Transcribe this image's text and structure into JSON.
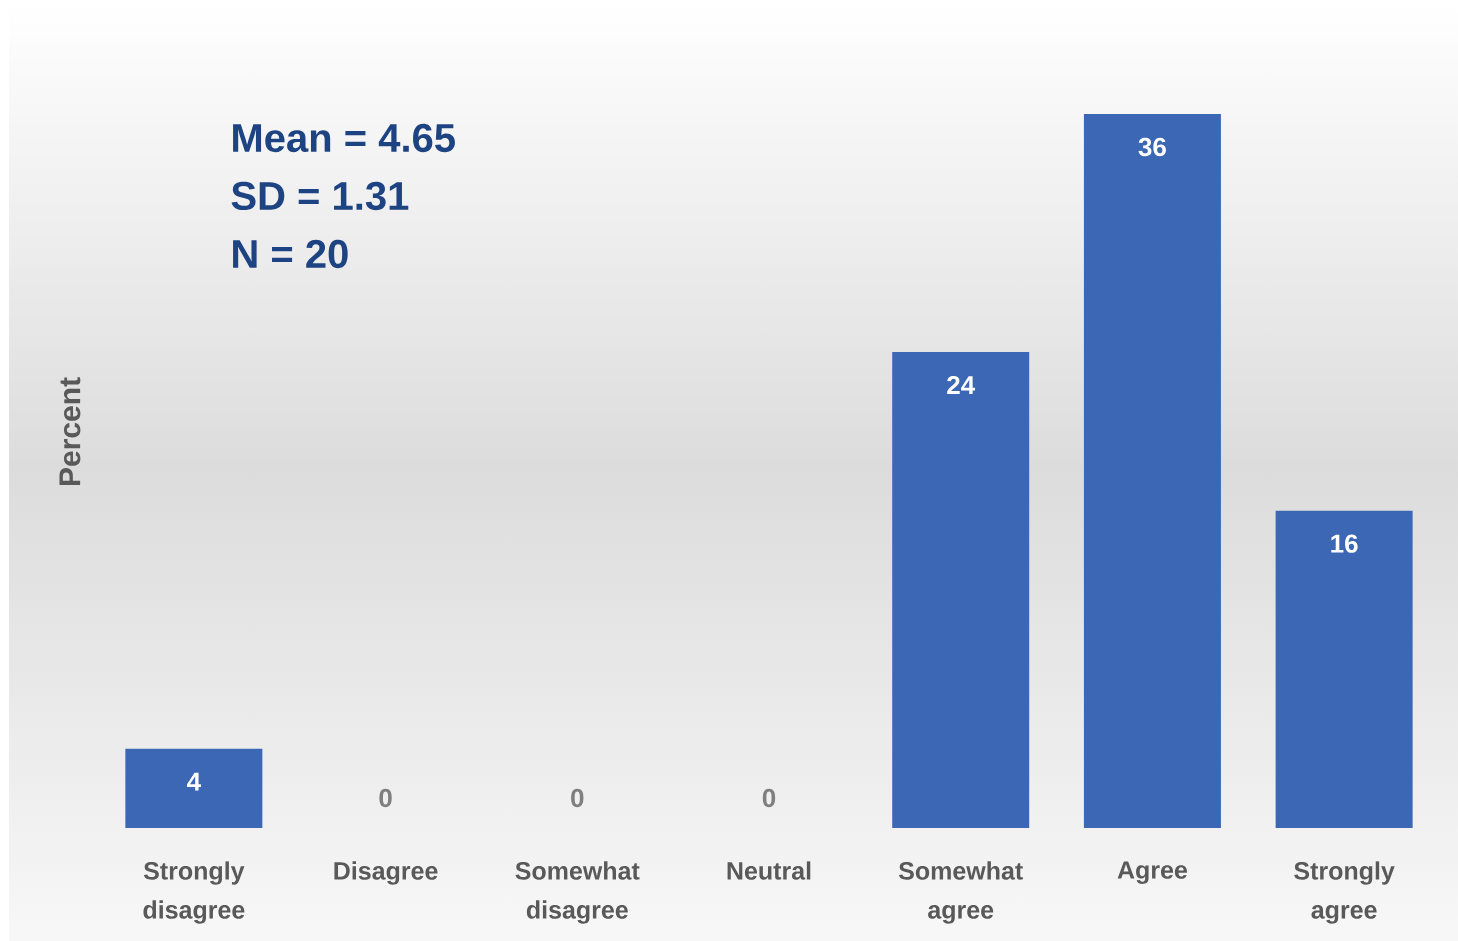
{
  "chart_data": {
    "type": "bar",
    "categories": [
      "Strongly disagree",
      "Disagree",
      "Somewhat disagree",
      "Neutral",
      "Somewhat agree",
      "Agree",
      "Strongly agree"
    ],
    "values": [
      4,
      0,
      0,
      0,
      24,
      36,
      16
    ],
    "color": "#3b67b5",
    "ylabel": "Percent",
    "data_labels": true,
    "annotations": [
      "Mean = 4.65",
      "SD = 1.31",
      "N = 20"
    ]
  }
}
